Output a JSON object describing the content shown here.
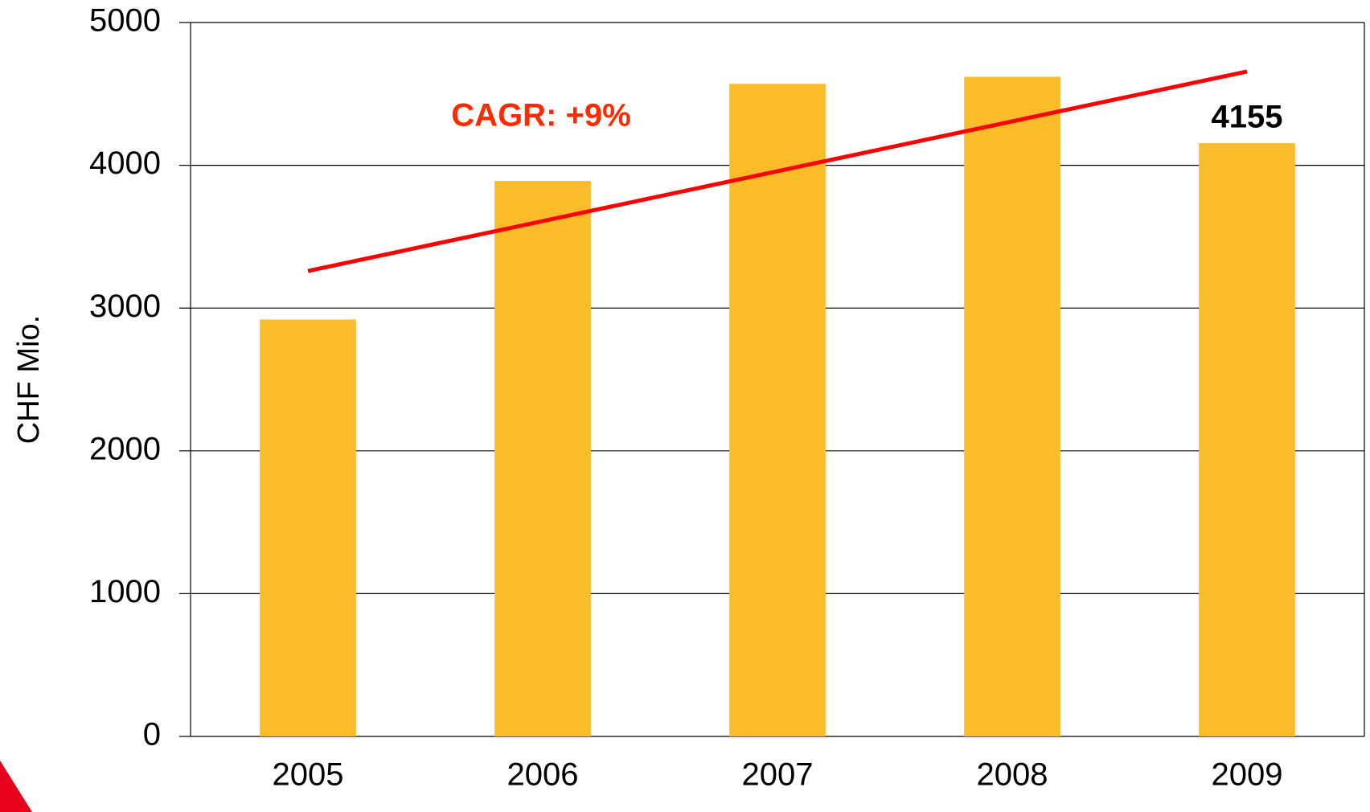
{
  "chart_data": {
    "type": "bar",
    "categories": [
      "2005",
      "2006",
      "2007",
      "2008",
      "2009"
    ],
    "values": [
      2920,
      3890,
      4570,
      4620,
      4155
    ],
    "value_labels": [
      null,
      null,
      null,
      null,
      "4155"
    ],
    "color": "#fbbc2b",
    "y_label": "CHF Mio.",
    "ylim": [
      0,
      5000
    ],
    "yticks": [
      0,
      1000,
      2000,
      3000,
      4000,
      5000
    ],
    "grid": true,
    "trend_line": {
      "values": [
        3260,
        4657
      ],
      "color": "#ff0000"
    },
    "annotation": "CAGR: +9%"
  }
}
